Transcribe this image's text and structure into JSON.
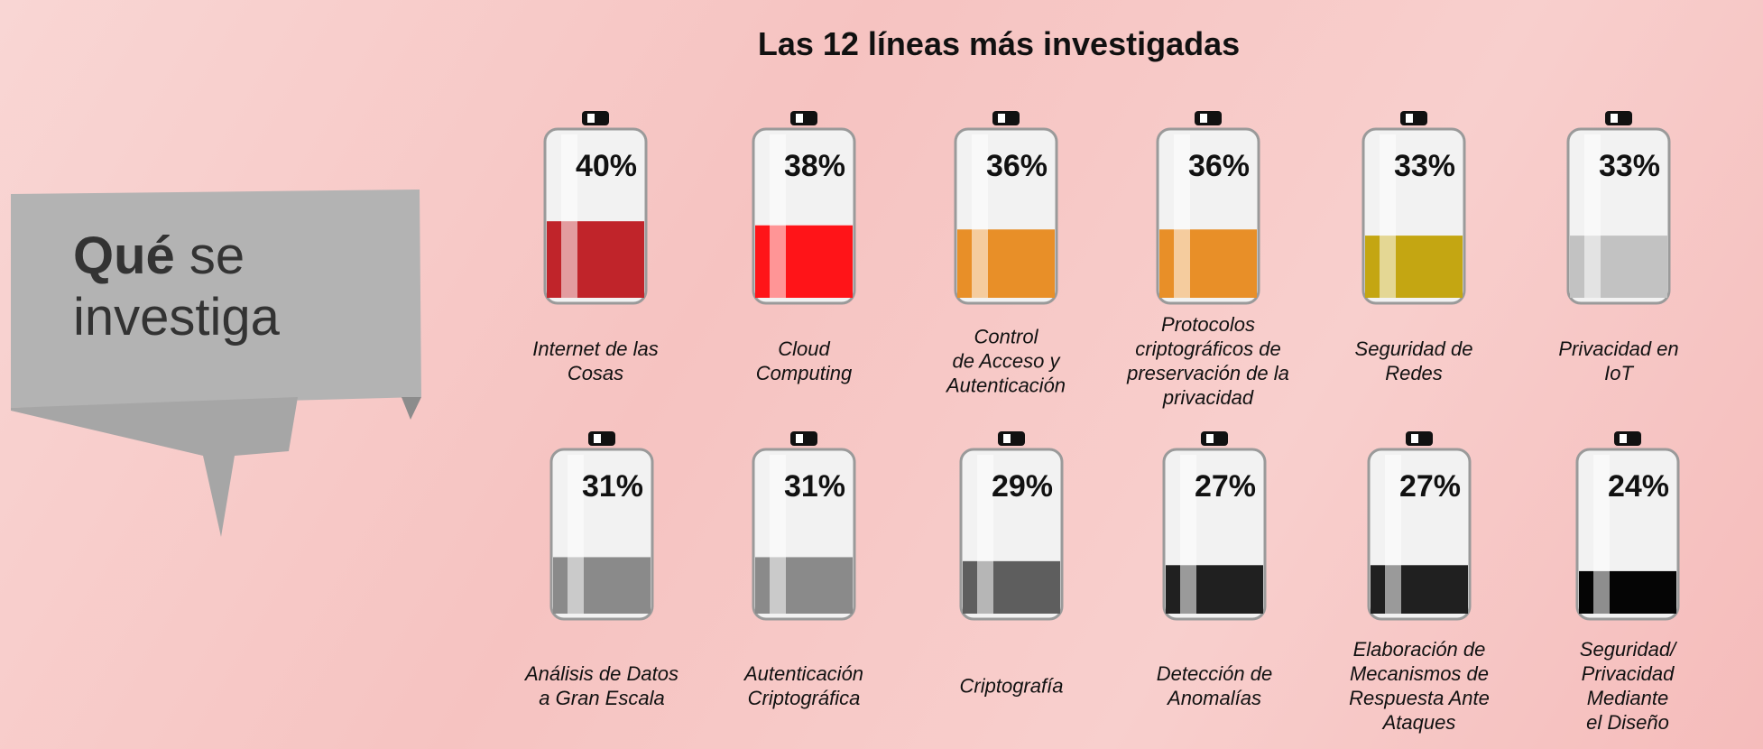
{
  "banner": {
    "bold": "Qué",
    "text": " se\ninvestiga"
  },
  "chart_data": {
    "type": "battery",
    "title": "Las 12 líneas más investigadas",
    "categories": [
      "Internet de las\nCosas",
      "Cloud\nComputing",
      "Control\nde Acceso y\nAutenticación",
      "Protocolos\ncriptográficos de\npreservación de la\nprivacidad",
      "Seguridad de\nRedes",
      "Privacidad en\nIoT",
      "Análisis de Datos\na Gran Escala",
      "Autenticación\nCriptográfica",
      "Criptografía",
      "Detección de\nAnomalías",
      "Elaboración de\nMecanismos de\nRespuesta Ante\nAtaques",
      "Seguridad/\nPrivacidad\nMediante\nel Diseño"
    ],
    "values": [
      40,
      38,
      36,
      36,
      33,
      33,
      31,
      31,
      29,
      27,
      27,
      24
    ],
    "value_labels": [
      "40%",
      "38%",
      "36%",
      "36%",
      "33%",
      "33%",
      "31%",
      "31%",
      "29%",
      "27%",
      "27%",
      "24%"
    ],
    "colors": [
      "#c0242a",
      "#ff1418",
      "#e88f28",
      "#e88f28",
      "#c4a612",
      "#c2c2c2",
      "#8a8a8a",
      "#8a8a8a",
      "#5e5e5e",
      "#202020",
      "#202020",
      "#050505"
    ],
    "ylim": [
      0,
      85
    ]
  }
}
